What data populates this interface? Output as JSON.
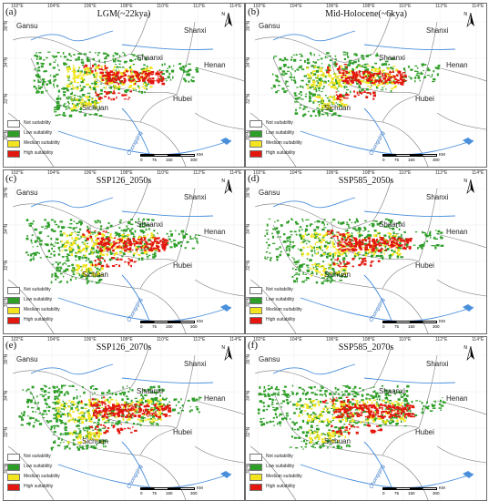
{
  "panels": [
    {
      "label": "(a)",
      "scenario": "LGM(~22kya)"
    },
    {
      "label": "(b)",
      "scenario": "Mid-Holocene(~6kya)"
    },
    {
      "label": "(c)",
      "scenario": "SSP126_2050s"
    },
    {
      "label": "(d)",
      "scenario": "SSP585_2050s"
    },
    {
      "label": "(e)",
      "scenario": "SSP126_2070s"
    },
    {
      "label": "(f)",
      "scenario": "SSP585_2070s"
    }
  ],
  "provinces": [
    "Gansu",
    "Shanxi",
    "Shaanxi",
    "Henan",
    "Sichuan",
    "Hubei"
  ],
  "river": "Chongqing",
  "longitudes": [
    "102°E",
    "104°E",
    "106°E",
    "108°E",
    "110°E",
    "112°E",
    "114°E"
  ],
  "latitudes": [
    "36°N",
    "34°N",
    "32°N",
    "30°N"
  ],
  "scale": {
    "ticks": [
      "0",
      "75",
      "150",
      "300"
    ],
    "unit": "KM"
  },
  "north": "N",
  "legend": [
    {
      "label": "Not suitability",
      "color": "#ffffff"
    },
    {
      "label": "Low suitability",
      "color": "#2e9e28"
    },
    {
      "label": "Medium suitability",
      "color": "#f2e51f"
    },
    {
      "label": "High suitability",
      "color": "#e3170d"
    }
  ]
}
